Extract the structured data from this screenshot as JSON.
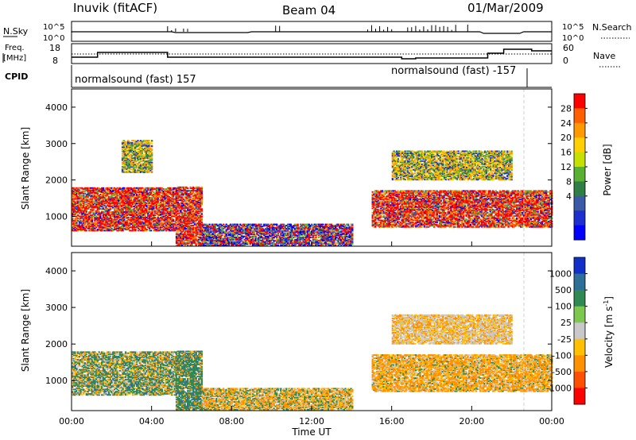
{
  "header": {
    "station": "Inuvik (fitACF)",
    "beam": "Beam 04",
    "date": "01/Mar/2009"
  },
  "strip_labels": {
    "nsky": "N.Sky",
    "freq_line1": "Freq.",
    "freq_line2": "[MHz]",
    "cpid": "CPID",
    "nsearch": "N.Search",
    "nave": "Nave",
    "nsky_hi": "10^5",
    "nsky_lo": "10^0",
    "nsearch_hi": "10^5",
    "nsearch_lo": "10^0",
    "freq_hi": "18",
    "freq_lo": "8",
    "nave_hi": "60",
    "nave_lo": "0"
  },
  "cpid": {
    "left": "normalsound (fast) 157",
    "right": "normalsound (fast) -157"
  },
  "time_axis": {
    "label": "Time UT",
    "ticks": [
      "00:00",
      "04:00",
      "08:00",
      "12:00",
      "16:00",
      "20:00",
      "00:00"
    ]
  },
  "chart_data": [
    {
      "type": "heatmap",
      "title": "Power",
      "ylabel": "Slant Range [km]",
      "xlabel": "",
      "xlim_hours": [
        0,
        24
      ],
      "ylim": [
        180,
        4500
      ],
      "yticks": [
        1000,
        2000,
        3000,
        4000
      ],
      "colorbar": {
        "label": "Power [dB]",
        "ticks": [
          "28",
          "24",
          "20",
          "16",
          "12",
          "8",
          "4"
        ],
        "colors": [
          "#ff0000",
          "#ff6000",
          "#ff9a00",
          "#ffd000",
          "#c8e000",
          "#5ab030",
          "#2e7e46",
          "#3a5aa8",
          "#1e2fd0",
          "#0000ff"
        ]
      },
      "regions": [
        {
          "t": [
            0,
            5.2
          ],
          "r": [
            600,
            1800
          ],
          "level": "high"
        },
        {
          "t": [
            5.2,
            6.5
          ],
          "r": [
            200,
            1800
          ],
          "level": "high"
        },
        {
          "t": [
            6.5,
            14
          ],
          "r": [
            200,
            800
          ],
          "level": "mixed"
        },
        {
          "t": [
            15,
            24
          ],
          "r": [
            700,
            1700
          ],
          "level": "high"
        },
        {
          "t": [
            16,
            22
          ],
          "r": [
            2000,
            2800
          ],
          "level": "mid"
        },
        {
          "t": [
            2.5,
            4
          ],
          "r": [
            2200,
            3100
          ],
          "level": "mid"
        }
      ]
    },
    {
      "type": "heatmap",
      "title": "Velocity",
      "ylabel": "Slant Range [km]",
      "xlabel": "Time UT",
      "xlim_hours": [
        0,
        24
      ],
      "ylim": [
        180,
        4500
      ],
      "yticks": [
        1000,
        2000,
        3000,
        4000
      ],
      "colorbar": {
        "label": "Velocity [m s-1]",
        "ticks": [
          "1000",
          "500",
          "100",
          "25",
          "-25",
          "-100",
          "-500",
          "-1000"
        ],
        "colors": [
          "#1030c8",
          "#2e6f98",
          "#2e8a52",
          "#7ec850",
          "#c8c8c8",
          "#ffc000",
          "#ff9000",
          "#ff5000",
          "#ff0000"
        ]
      },
      "regions": [
        {
          "t": [
            0,
            5.2
          ],
          "r": [
            600,
            1800
          ],
          "level": "mixed-green-orange"
        },
        {
          "t": [
            5.2,
            6.5
          ],
          "r": [
            200,
            1800
          ],
          "level": "green"
        },
        {
          "t": [
            6.5,
            14
          ],
          "r": [
            200,
            800
          ],
          "level": "orange-green"
        },
        {
          "t": [
            15,
            24
          ],
          "r": [
            700,
            1700
          ],
          "level": "orange"
        },
        {
          "t": [
            16,
            22
          ],
          "r": [
            2000,
            2800
          ],
          "level": "grey-orange"
        }
      ]
    }
  ]
}
